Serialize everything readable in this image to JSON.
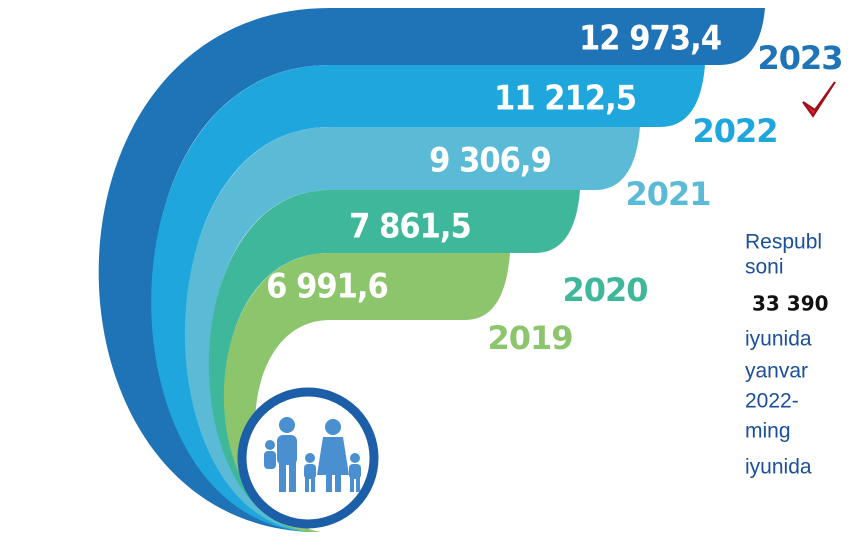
{
  "bands": [
    {
      "value": "12 973,4",
      "year": "2023"
    },
    {
      "value": "11 212,5",
      "year": "2022"
    },
    {
      "value": "9 306,9",
      "year": "2021"
    },
    {
      "value": "7 861,5",
      "year": "2020"
    },
    {
      "value": "6 991,6",
      "year": "2019"
    }
  ],
  "side_text": [
    "Respubl",
    "soni",
    "33 390",
    "iyunida",
    "yanvar",
    "2022-",
    "ming",
    "iyunida"
  ]
}
